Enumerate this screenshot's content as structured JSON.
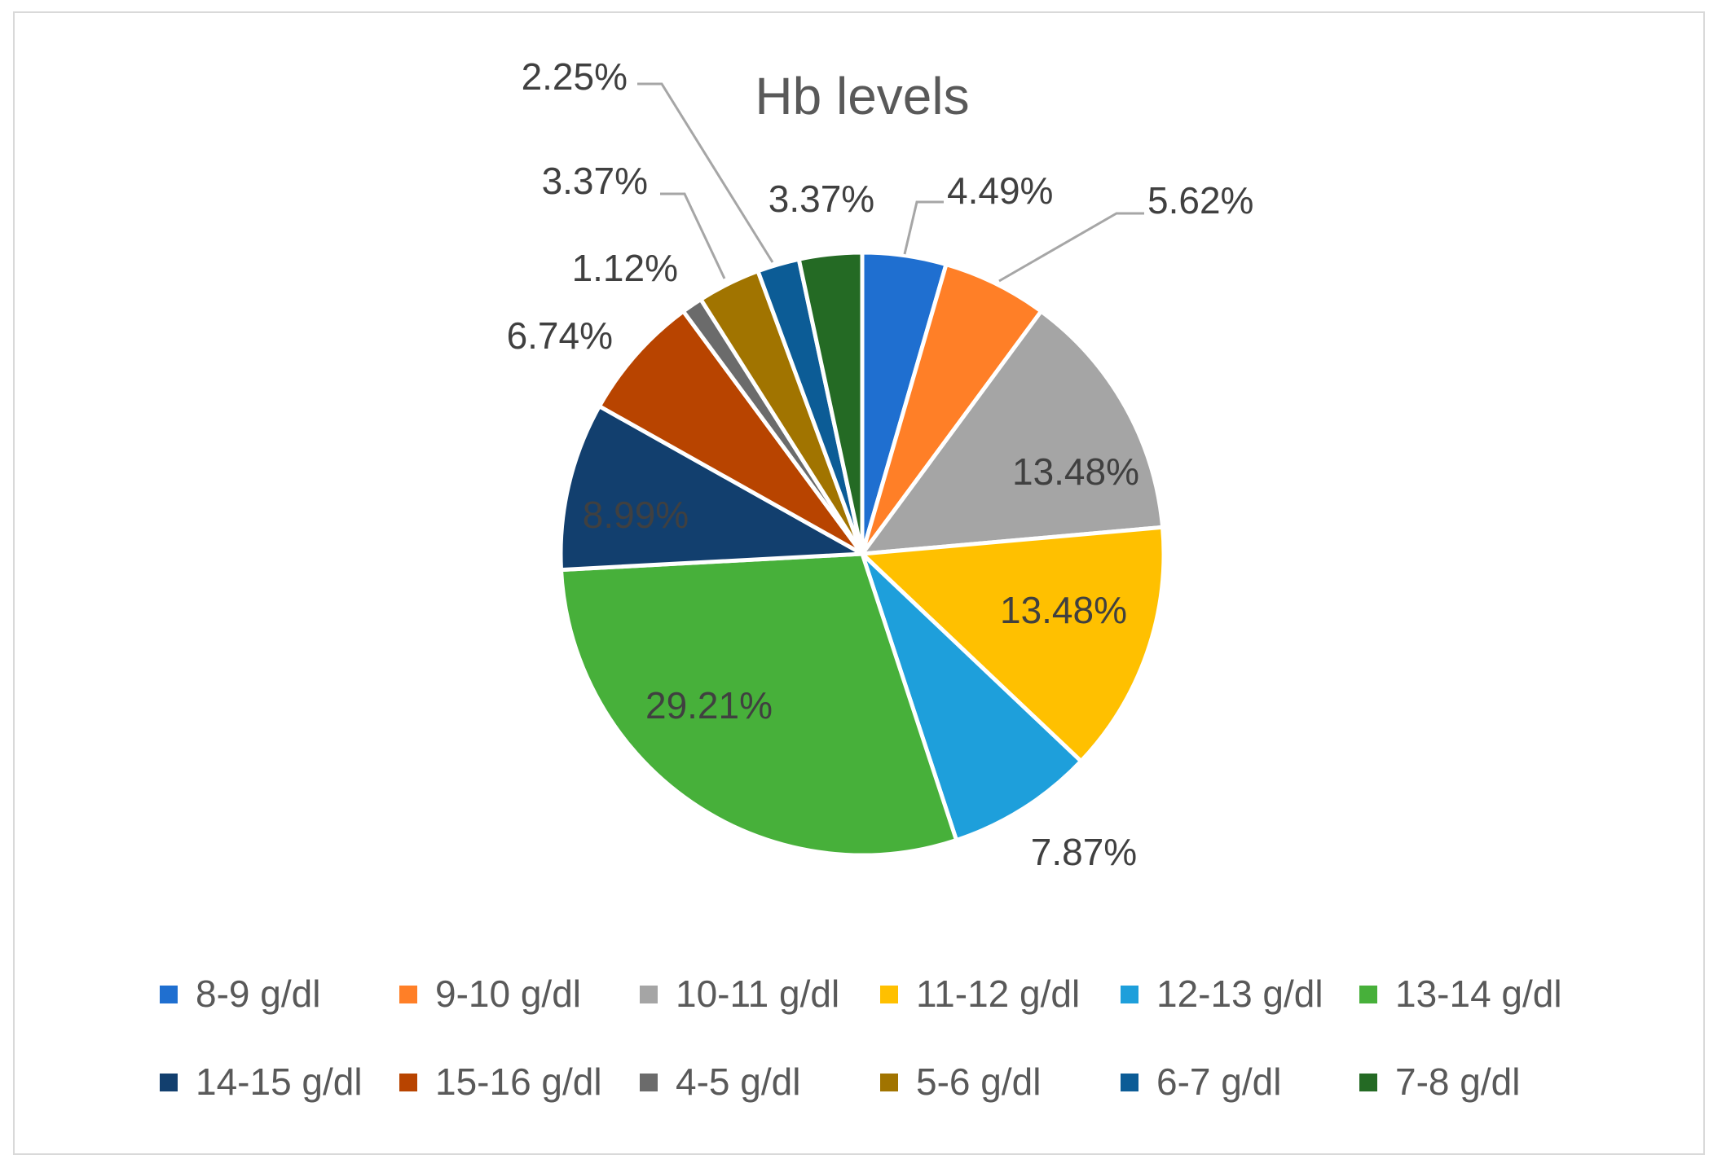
{
  "chart_data": {
    "type": "pie",
    "title": "Hb levels",
    "categories": [
      "8-9 g/dl",
      "9-10 g/dl",
      "10-11 g/dl",
      "11-12 g/dl",
      "12-13 g/dl",
      "13-14 g/dl",
      "14-15 g/dl",
      "15-16 g/dl",
      "4-5 g/dl",
      "5-6 g/dl",
      "6-7 g/dl",
      "7-8 g/dl"
    ],
    "values": [
      4.49,
      5.62,
      13.48,
      13.48,
      7.87,
      29.21,
      8.99,
      6.74,
      1.12,
      3.37,
      2.25,
      3.37
    ],
    "labels": [
      "4.49%",
      "5.62%",
      "13.48%",
      "13.48%",
      "7.87%",
      "29.21%",
      "8.99%",
      "6.74%",
      "1.12%",
      "3.37%",
      "2.25%",
      "3.37%"
    ],
    "colors": [
      "#1F6FD0",
      "#FF7F27",
      "#A5A5A5",
      "#FFC000",
      "#1E9FDB",
      "#47B03A",
      "#123F6E",
      "#B84400",
      "#6B6B6B",
      "#A17400",
      "#0C5C96",
      "#246A24"
    ],
    "legend": "bottom",
    "data_labels": true
  }
}
